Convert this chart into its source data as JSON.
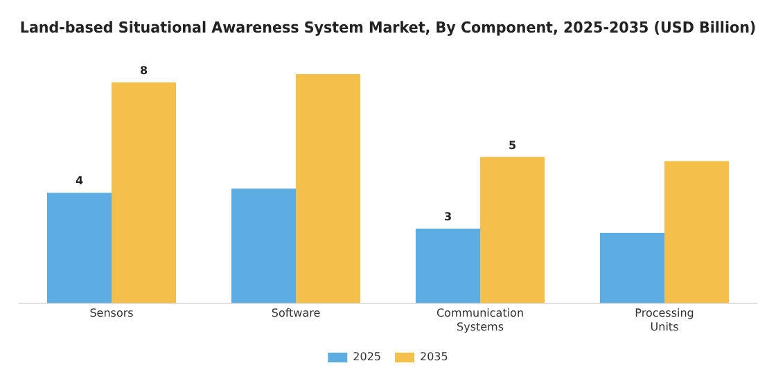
{
  "chart_data": {
    "type": "bar",
    "title": "Land-based Situational Awareness System Market, By Component, 2025-2035 (USD Billion)",
    "categories": [
      "Sensors",
      "Software",
      "Communication Systems",
      "Processing Units"
    ],
    "series": [
      {
        "name": "2025",
        "color": "#5dade2",
        "values": [
          4,
          4.15,
          2.7,
          2.55
        ],
        "value_labels": [
          "4",
          null,
          "3",
          null
        ]
      },
      {
        "name": "2035",
        "color": "#f5c04a",
        "values": [
          8,
          8.3,
          5.3,
          5.15
        ],
        "value_labels": [
          "8",
          null,
          "5",
          null
        ]
      }
    ],
    "legend": "bottom",
    "grid": false
  }
}
